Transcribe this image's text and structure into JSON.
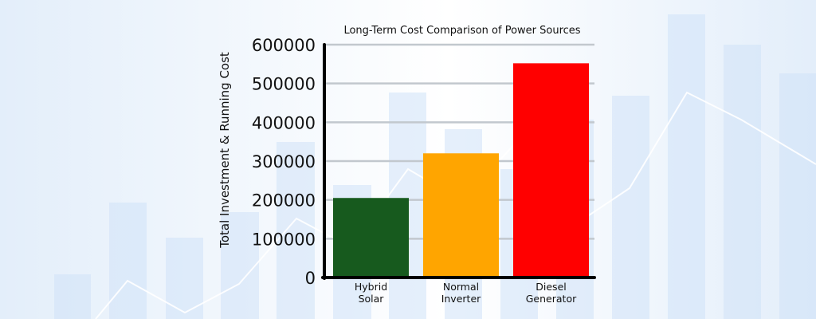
{
  "chart_data": {
    "type": "bar",
    "title": "Long-Term Cost Comparison of Power Sources",
    "ylabel": "Total Investment & Running Cost",
    "xlabel": "",
    "categories": [
      [
        "Hybrid",
        "Solar"
      ],
      [
        "Normal",
        "Inverter"
      ],
      [
        "Diesel",
        "Generator"
      ]
    ],
    "values": [
      205000,
      320000,
      552000
    ],
    "bar_colors": [
      "#175a1e",
      "#ffa500",
      "#ff0000"
    ],
    "ylim": [
      0,
      600000
    ],
    "yticks": [
      "0",
      "100000",
      "200000",
      "300000",
      "400000",
      "500000",
      "600000"
    ],
    "grid": true,
    "legend": "none"
  },
  "background": {
    "gradient_from": "#e3eefa",
    "gradient_to": "#ffffff",
    "decor_bar_color": "#cfe2f7",
    "decor_line_color": "#ffffff"
  }
}
